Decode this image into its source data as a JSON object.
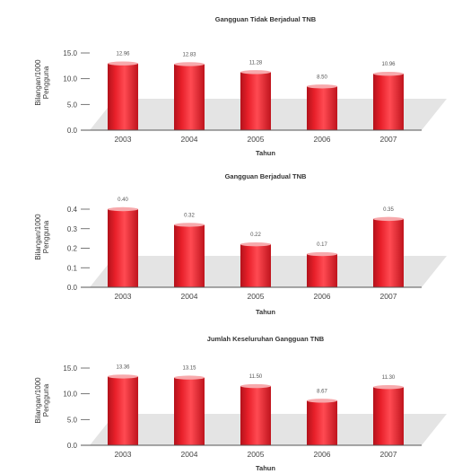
{
  "chart_data": [
    {
      "type": "bar",
      "title": "Gangguan Tidak Berjadual TNB",
      "xlabel": "Tahun",
      "ylabel_lines": [
        "Bilangan/1000",
        "Pengguna"
      ],
      "categories": [
        "2003",
        "2004",
        "2005",
        "2006",
        "2007"
      ],
      "values": [
        12.96,
        12.83,
        11.28,
        8.5,
        10.96
      ],
      "value_labels": [
        "12.96",
        "12.83",
        "11.28",
        "8.50",
        "10.96"
      ],
      "yticks": [
        "0.0",
        "5.0",
        "10.0",
        "15.0"
      ],
      "ytick_values": [
        0,
        5,
        10,
        15
      ],
      "ylim": [
        0,
        15
      ],
      "grid": false,
      "colors": {
        "bar": "#e8202a",
        "bar_top": "#f7a9ac",
        "floor": "#e4e4e4"
      }
    },
    {
      "type": "bar",
      "title": "Gangguan Berjadual TNB",
      "xlabel": "Tahun",
      "ylabel_lines": [
        "Bilangan/1000",
        "Pengguna"
      ],
      "categories": [
        "2003",
        "2004",
        "2005",
        "2006",
        "2007"
      ],
      "values": [
        0.4,
        0.32,
        0.22,
        0.17,
        0.35
      ],
      "value_labels": [
        "0.40",
        "0.32",
        "0.22",
        "0.17",
        "0.35"
      ],
      "yticks": [
        "0.0",
        "0.1",
        "0.2",
        "0.3",
        "0.4"
      ],
      "ytick_values": [
        0,
        0.1,
        0.2,
        0.3,
        0.4
      ],
      "ylim": [
        0,
        0.4
      ],
      "grid": false,
      "colors": {
        "bar": "#e8202a",
        "bar_top": "#f7a9ac",
        "floor": "#e4e4e4"
      }
    },
    {
      "type": "bar",
      "title": "Jumlah Keseluruhan Gangguan TNB",
      "xlabel": "Tahun",
      "ylabel_lines": [
        "Bilangan/1000",
        "Pengguna"
      ],
      "categories": [
        "2003",
        "2004",
        "2005",
        "2006",
        "2007"
      ],
      "values": [
        13.36,
        13.15,
        11.5,
        8.67,
        11.3
      ],
      "value_labels": [
        "13.36",
        "13.15",
        "11.50",
        "8.67",
        "11.30"
      ],
      "yticks": [
        "0.0",
        "5.0",
        "10.0",
        "15.0"
      ],
      "ytick_values": [
        0,
        5,
        10,
        15
      ],
      "ylim": [
        0,
        15
      ],
      "grid": false,
      "colors": {
        "bar": "#e8202a",
        "bar_top": "#f7a9ac",
        "floor": "#e4e4e4"
      }
    }
  ]
}
